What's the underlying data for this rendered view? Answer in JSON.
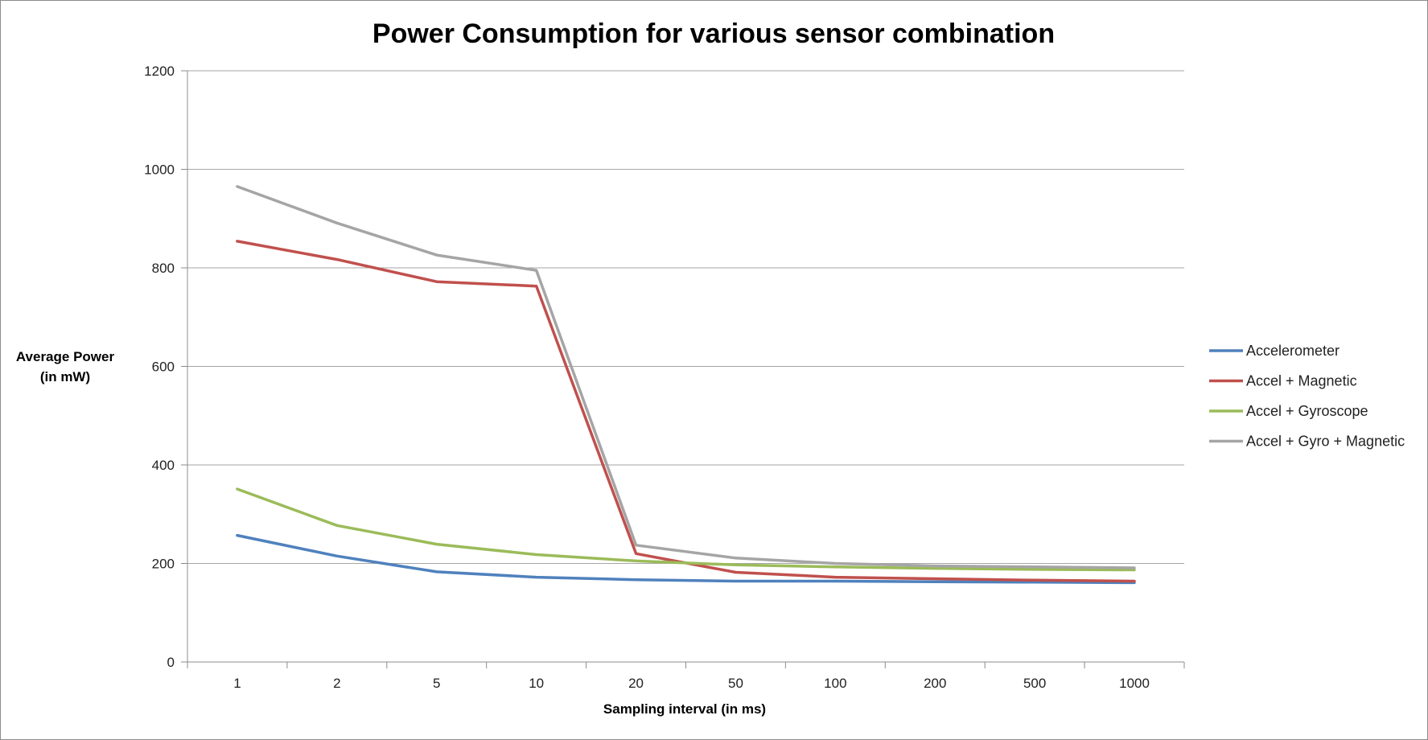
{
  "chart_data": {
    "type": "line",
    "title": "Power Consumption for various sensor combination",
    "xlabel": "Sampling interval  (in ms)",
    "ylabel": [
      "Average Power",
      "(in mW)"
    ],
    "categories": [
      "1",
      "2",
      "5",
      "10",
      "20",
      "50",
      "100",
      "200",
      "500",
      "1000"
    ],
    "ylim": [
      0,
      1200
    ],
    "yticks": [
      0,
      200,
      400,
      600,
      800,
      1000,
      1200
    ],
    "grid": "horizontal",
    "legend_position": "right",
    "series": [
      {
        "name": "Accelerometer",
        "color": "#4f81bd",
        "values": [
          257,
          215,
          183,
          172,
          167,
          164,
          164,
          163,
          162,
          161
        ]
      },
      {
        "name": "Accel + Magnetic",
        "color": "#c0504d",
        "values": [
          854,
          817,
          772,
          763,
          220,
          182,
          172,
          169,
          166,
          164
        ]
      },
      {
        "name": "Accel + Gyroscope",
        "color": "#9bbb59",
        "values": [
          351,
          277,
          239,
          218,
          205,
          197,
          193,
          190,
          188,
          187
        ]
      },
      {
        "name": "Accel + Gyro + Magnetic",
        "color": "#a5a5a5",
        "values": [
          965,
          891,
          826,
          795,
          237,
          211,
          200,
          195,
          193,
          191
        ]
      }
    ]
  }
}
